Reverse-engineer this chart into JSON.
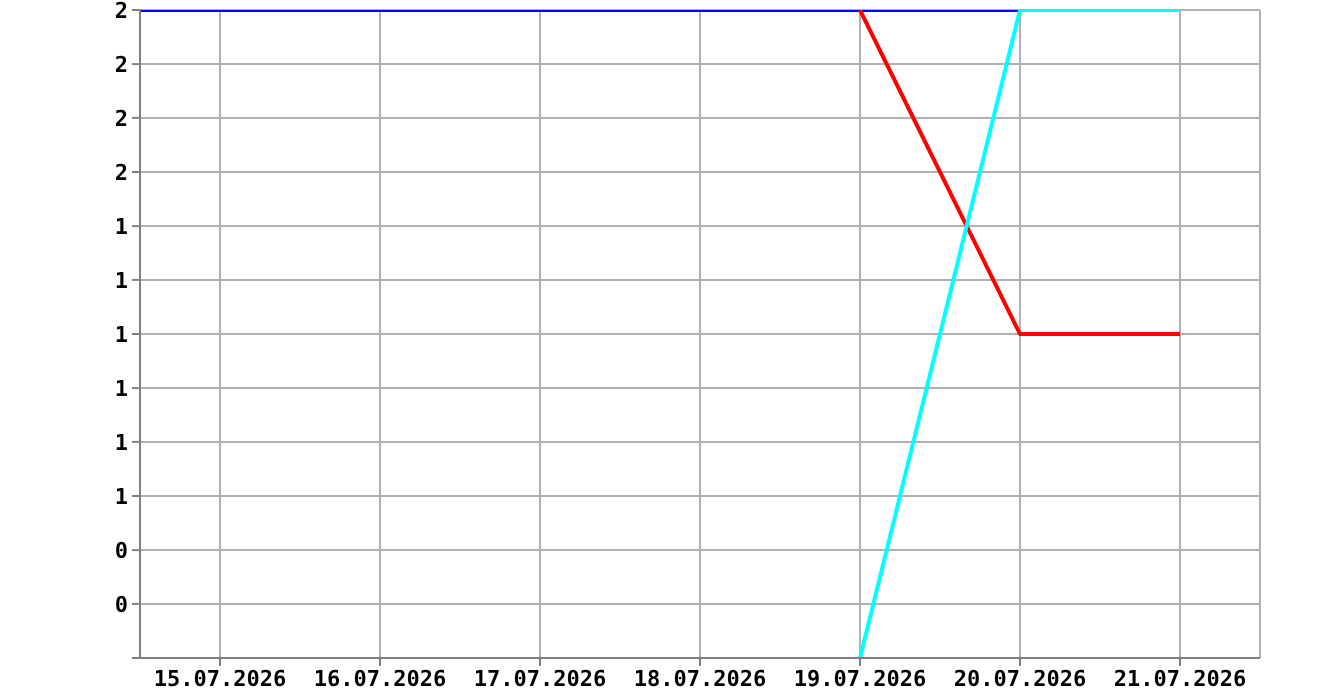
{
  "chart_data": {
    "type": "line",
    "x": [
      "2026-07-14T12:00",
      "2026-07-15",
      "2026-07-16",
      "2026-07-17",
      "2026-07-18",
      "2026-07-19",
      "2026-07-20",
      "2026-07-21"
    ],
    "series": [
      {
        "color": "#0000ff",
        "values": [
          2,
          2,
          2,
          2,
          2,
          2,
          2,
          null
        ]
      },
      {
        "color": "#ff0000",
        "values": [
          null,
          null,
          null,
          null,
          null,
          2,
          1,
          1
        ]
      },
      {
        "color": "#00ffff",
        "values": [
          null,
          null,
          null,
          null,
          null,
          0,
          2,
          2
        ]
      }
    ],
    "xlim": [
      "2026-07-14T12:00",
      "2026-07-21T12:00"
    ],
    "xticks": [
      {
        "value": "2026-07-15",
        "label": "15.07.2026"
      },
      {
        "value": "2026-07-16",
        "label": "16.07.2026"
      },
      {
        "value": "2026-07-17",
        "label": "17.07.2026"
      },
      {
        "value": "2026-07-18",
        "label": "18.07.2026"
      },
      {
        "value": "2026-07-19",
        "label": "19.07.2026"
      },
      {
        "value": "2026-07-20",
        "label": "20.07.2026"
      },
      {
        "value": "2026-07-21",
        "label": "21.07.2026"
      }
    ],
    "ylim": [
      0,
      2
    ],
    "yticks": [
      {
        "value": 0,
        "label": null
      },
      {
        "value": 0.167,
        "label": "0"
      },
      {
        "value": 0.333,
        "label": "0"
      },
      {
        "value": 0.5,
        "label": "1"
      },
      {
        "value": 0.667,
        "label": "1"
      },
      {
        "value": 0.833,
        "label": "1"
      },
      {
        "value": 1,
        "label": "1"
      },
      {
        "value": 1.167,
        "label": "1"
      },
      {
        "value": 1.333,
        "label": "1"
      },
      {
        "value": 1.5,
        "label": "2"
      },
      {
        "value": 1.667,
        "label": "2"
      },
      {
        "value": 1.833,
        "label": "2"
      },
      {
        "value": 2,
        "label": "2"
      }
    ],
    "grid": true
  }
}
